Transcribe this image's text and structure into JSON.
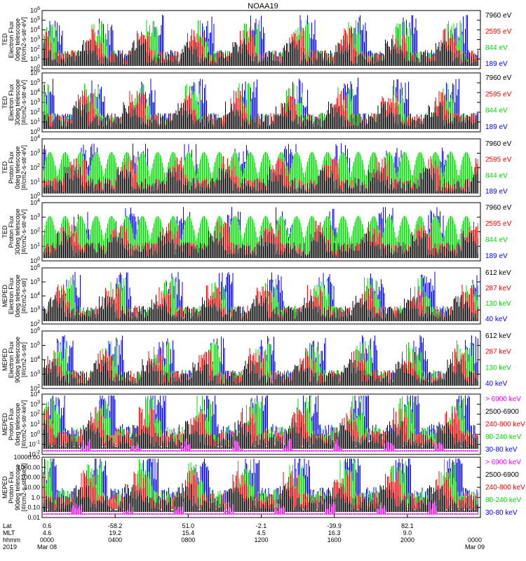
{
  "title": "NOAA19",
  "colors": {
    "blue": "#0000ff",
    "green": "#00dd00",
    "red": "#ff0000",
    "black": "#000000",
    "magenta": "#ff00ff"
  },
  "chart_data": [
    {
      "type": "line",
      "panel": "TED Electron Flux 0deg telescope",
      "ylabel": [
        "TED",
        "Electron Flux",
        "0deg telescope",
        "[#/cm2-s-str-eV]"
      ],
      "yticks": [
        "10^0",
        "10^1",
        "10^2",
        "10^3",
        "10^4",
        "10^5",
        "10^6"
      ],
      "ylim": [
        1,
        1000000
      ],
      "yscale": "log",
      "series": [
        {
          "name": "7960 eV",
          "color": "#000000"
        },
        {
          "name": "2595 eV",
          "color": "#ff0000"
        },
        {
          "name": "844 eV",
          "color": "#00dd00"
        },
        {
          "name": "189 eV",
          "color": "#0000ff"
        }
      ]
    },
    {
      "type": "line",
      "panel": "TED Electron Flux 30deg telescope",
      "ylabel": [
        "TED",
        "Electron Flux",
        "30deg telescope",
        "[#/cm2-s-str-eV]"
      ],
      "yticks": [
        "10^0",
        "10^1",
        "10^2",
        "10^3",
        "10^4",
        "10^5",
        "10^6"
      ],
      "ylim": [
        1,
        1000000
      ],
      "yscale": "log",
      "series": [
        {
          "name": "7960 eV",
          "color": "#000000"
        },
        {
          "name": "2595 eV",
          "color": "#ff0000"
        },
        {
          "name": "844 eV",
          "color": "#00dd00"
        },
        {
          "name": "189 eV",
          "color": "#0000ff"
        }
      ]
    },
    {
      "type": "line",
      "panel": "TED Proton Flux 0deg telescope",
      "ylabel": [
        "TED",
        "Proton Flux",
        "0deg telescope",
        "[#/cm2-s-str-eV]"
      ],
      "yticks": [
        "10^0",
        "10^1",
        "10^2",
        "10^3",
        "10^4"
      ],
      "ylim": [
        1,
        10000
      ],
      "yscale": "log",
      "series": [
        {
          "name": "7960 eV",
          "color": "#000000"
        },
        {
          "name": "2595 eV",
          "color": "#ff0000"
        },
        {
          "name": "844 eV",
          "color": "#00dd00"
        },
        {
          "name": "189 eV",
          "color": "#0000ff"
        }
      ]
    },
    {
      "type": "line",
      "panel": "TED Proton Flux 30deg telescope",
      "ylabel": [
        "TED",
        "Proton Flux",
        "30deg telescope",
        "[#/cm2-s-str-eV]"
      ],
      "yticks": [
        "10^0",
        "10^1",
        "10^2",
        "10^3",
        "10^4"
      ],
      "ylim": [
        1,
        10000
      ],
      "yscale": "log",
      "series": [
        {
          "name": "7960 eV",
          "color": "#000000"
        },
        {
          "name": "2595 eV",
          "color": "#ff0000"
        },
        {
          "name": "844 eV",
          "color": "#00dd00"
        },
        {
          "name": "189 eV",
          "color": "#0000ff"
        }
      ]
    },
    {
      "type": "line",
      "panel": "MEPED Electron Flux 0deg telescope",
      "ylabel": [
        "MEPED",
        "Electron Flux",
        "0deg telescope",
        "[#/cm2-s-str]"
      ],
      "yticks": [
        "10^2",
        "10^3",
        "10^4",
        "10^5",
        "10^6"
      ],
      "ylim": [
        100,
        1000000
      ],
      "yscale": "log",
      "series": [
        {
          "name": "612 keV",
          "color": "#000000"
        },
        {
          "name": "287 keV",
          "color": "#ff0000"
        },
        {
          "name": "130 keV",
          "color": "#00dd00"
        },
        {
          "name": "40 keV",
          "color": "#0000ff"
        }
      ]
    },
    {
      "type": "line",
      "panel": "MEPED Electron Flux 90deg telescope",
      "ylabel": [
        "MEPED",
        "Electron Flux",
        "90deg telescope",
        "[#/cm2-s-str]"
      ],
      "yticks": [
        "10^2",
        "10^3",
        "10^4",
        "10^5",
        "10^6"
      ],
      "ylim": [
        100,
        1000000
      ],
      "yscale": "log",
      "series": [
        {
          "name": "612 keV",
          "color": "#000000"
        },
        {
          "name": "287 keV",
          "color": "#ff0000"
        },
        {
          "name": "130 keV",
          "color": "#00dd00"
        },
        {
          "name": "40 keV",
          "color": "#0000ff"
        }
      ]
    },
    {
      "type": "line",
      "panel": "MEPED Proton Flux 0deg telescope",
      "ylabel": [
        "MEPED",
        "Proton Flux",
        "0deg telescope",
        "[#/cm2-s-str-keV]"
      ],
      "yticks": [
        "10^-2",
        "10^-1",
        "10^0",
        "10^1",
        "10^2",
        "10^3",
        "10^4"
      ],
      "ylim": [
        0.01,
        10000
      ],
      "yscale": "log",
      "series": [
        {
          "name": "> 6900 keV",
          "color": "#ff00ff"
        },
        {
          "name": "2500-6900",
          "color": "#000000"
        },
        {
          "name": "240-800 keV",
          "color": "#ff0000"
        },
        {
          "name": "80-240 keV",
          "color": "#00dd00"
        },
        {
          "name": "30-80 keV",
          "color": "#0000ff"
        }
      ]
    },
    {
      "type": "line",
      "panel": "MEPED Proton Flux 90deg telescope",
      "ylabel": [
        "MEPED",
        "Proton Flux",
        "90deg telescope",
        "[#/cm2-s-str-keV]"
      ],
      "yticks": [
        "0.01",
        "0.10",
        "1.0",
        "10.00",
        "100.00",
        "1000.00",
        "10000.00"
      ],
      "ylim": [
        0.01,
        10000
      ],
      "yscale": "log",
      "series": [
        {
          "name": "> 6900 keV",
          "color": "#ff00ff"
        },
        {
          "name": "2500-6900",
          "color": "#000000"
        },
        {
          "name": "240-800 keV",
          "color": "#ff0000"
        },
        {
          "name": "80-240 keV",
          "color": "#00dd00"
        },
        {
          "name": "30-80 keV",
          "color": "#0000ff"
        }
      ]
    }
  ],
  "xaxis": {
    "row_labels": [
      "Lat",
      "MLT",
      "hhmm",
      "2019"
    ],
    "ticks": [
      {
        "lat": "0.6",
        "mlt": "4.6",
        "hhmm": "0000",
        "date": "Mar 08"
      },
      {
        "lat": "-58.2",
        "mlt": "19.2",
        "hhmm": "0400",
        "date": ""
      },
      {
        "lat": "51.0",
        "mlt": "15.4",
        "hhmm": "0800",
        "date": ""
      },
      {
        "lat": "-2.1",
        "mlt": "4.5",
        "hhmm": "1200",
        "date": ""
      },
      {
        "lat": "-39.9",
        "mlt": "16.3",
        "hhmm": "1600",
        "date": ""
      },
      {
        "lat": "82.1",
        "mlt": "9.0",
        "hhmm": "2000",
        "date": ""
      },
      {
        "lat": "",
        "mlt": "",
        "hhmm": "0000",
        "date": "Mar 09"
      }
    ]
  }
}
